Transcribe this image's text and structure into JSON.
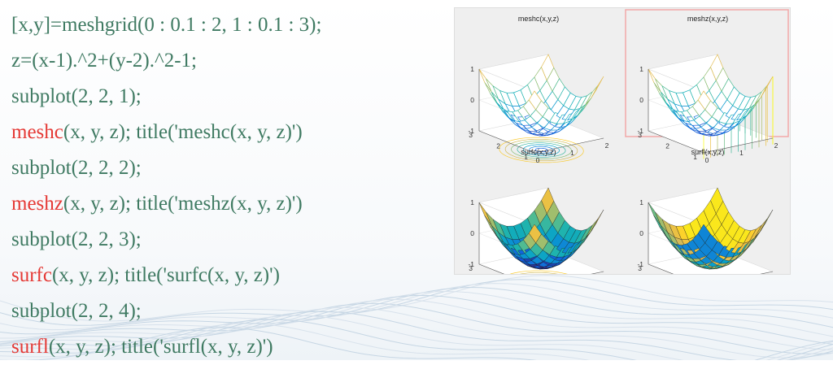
{
  "code": [
    {
      "func": "",
      "text": "[x,y]=meshgrid(0 : 0.1 : 2, 1 : 0.1 : 3);"
    },
    {
      "func": "",
      "text": "z=(x-1).^2+(y-2).^2-1;"
    },
    {
      "func": "",
      "text": "subplot(2, 2, 1);"
    },
    {
      "func": "meshc",
      "text": "(x, y, z); title('meshc(x, y, z)')"
    },
    {
      "func": "",
      "text": "subplot(2, 2, 2);"
    },
    {
      "func": "meshz",
      "text": "(x, y, z); title('meshz(x, y, z)')"
    },
    {
      "func": "",
      "text": "subplot(2, 2, 3);"
    },
    {
      "func": "surfc",
      "text": "(x, y, z); title('surfc(x, y, z)')"
    },
    {
      "func": "",
      "text": "subplot(2, 2, 4);"
    },
    {
      "func": "surfl",
      "text": "(x, y, z); title('surfl(x, y, z)')"
    }
  ],
  "colors": {
    "code_text": "#3f7a62",
    "code_function": "#e53935",
    "figure_bg": "#efefef",
    "selected_border": "#f2a8a8"
  },
  "figure": {
    "subplots": [
      {
        "title": "meshc(x,y,z)",
        "type": "mesh",
        "contour": true,
        "curtain": false,
        "selected": false
      },
      {
        "title": "meshz(x,y,z)",
        "type": "mesh",
        "contour": false,
        "curtain": true,
        "selected": true
      },
      {
        "title": "surfc(x,y,z)",
        "type": "surf",
        "contour": true,
        "curtain": false,
        "selected": false
      },
      {
        "title": "surfl(x,y,z)",
        "type": "surfl",
        "contour": false,
        "curtain": false,
        "selected": false
      }
    ],
    "ticks": {
      "z": [
        "1",
        "0",
        "-1"
      ],
      "y": [
        "3",
        "2",
        "1"
      ],
      "x": [
        "0",
        "1",
        "2"
      ]
    }
  }
}
